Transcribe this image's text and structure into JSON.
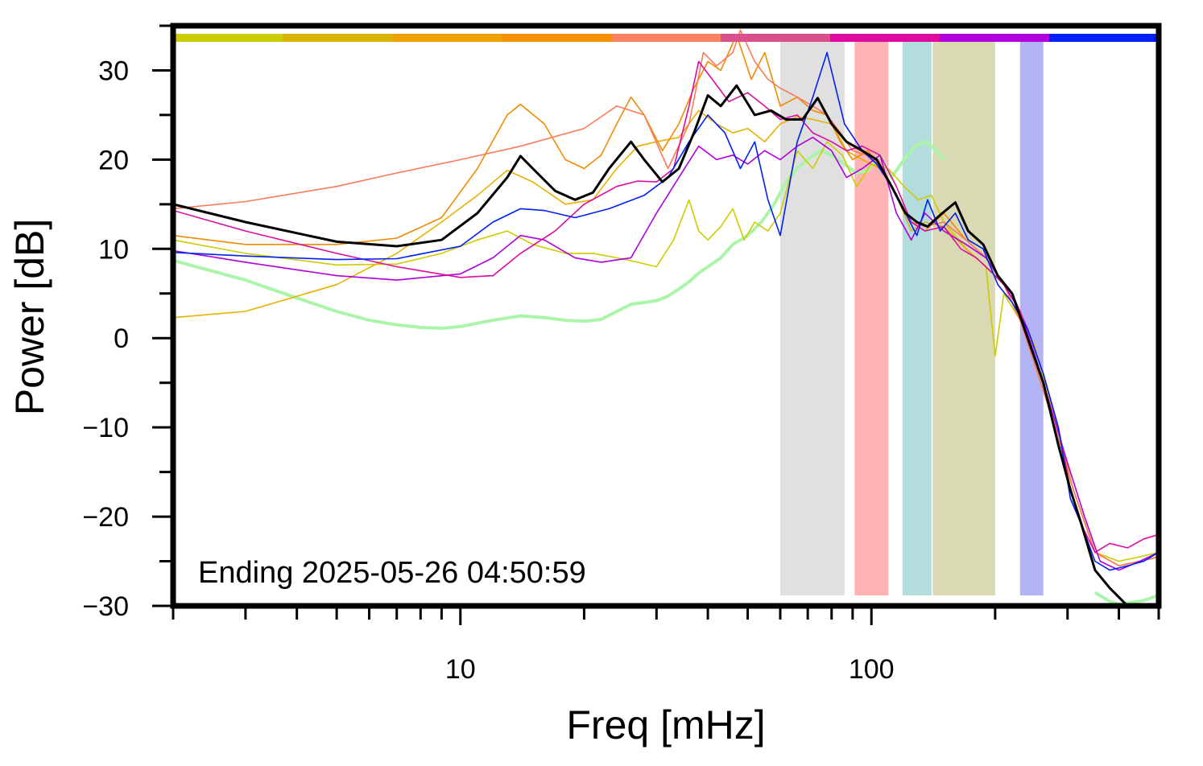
{
  "chart_data": {
    "type": "line",
    "xlabel": "Freq [mHz]",
    "ylabel": "Power [dB]",
    "x_scale": "log",
    "xlim": [
      2,
      500
    ],
    "ylim": [
      -30,
      35
    ],
    "x_tick_labels": [
      {
        "value": 10,
        "label": "10"
      },
      {
        "value": 100,
        "label": "100"
      }
    ],
    "x_minor_ticks": [
      2,
      3,
      4,
      5,
      6,
      7,
      8,
      9,
      20,
      30,
      40,
      50,
      60,
      70,
      80,
      90,
      200,
      300,
      400,
      500
    ],
    "y_ticks": [
      -30,
      -20,
      -10,
      0,
      10,
      20,
      30
    ],
    "y_minor_ticks": [
      -25,
      -15,
      -5,
      5,
      15,
      25,
      35
    ],
    "grid": false,
    "annotation": "Ending 2025-05-26 04:50:59",
    "shaded_bands": [
      {
        "x0": 60,
        "x1": 86,
        "color": "#e0e0e0"
      },
      {
        "x0": 91,
        "x1": 110,
        "color": "#ffb3b3"
      },
      {
        "x0": 119,
        "x1": 140,
        "color": "#b3dcdc"
      },
      {
        "x0": 141,
        "x1": 200,
        "color": "#d9d9b3"
      },
      {
        "x0": 230,
        "x1": 262,
        "color": "#b3b3f5"
      }
    ],
    "color_strip": [
      "#cccc00",
      "#d9b300",
      "#f0a000",
      "#f59000",
      "#fa8060",
      "#d9508a",
      "#dd0ba0",
      "#b000dd",
      "#0020f5"
    ],
    "series": [
      {
        "color": "#000000",
        "width": 3,
        "x": [
          2,
          3,
          5,
          7,
          9,
          11,
          13,
          14,
          15,
          17,
          19,
          21,
          23,
          26,
          28,
          31,
          34,
          37,
          40,
          43,
          47,
          52,
          57,
          62,
          68,
          74,
          80,
          87,
          95,
          103,
          112,
          121,
          129,
          137,
          147,
          160,
          172,
          187,
          203,
          220,
          240,
          262,
          285,
          305,
          325,
          350,
          380,
          420,
          460,
          500
        ],
        "y": [
          15,
          13,
          10.8,
          10.3,
          11,
          14,
          18,
          20.4,
          19,
          16.5,
          15.5,
          16.3,
          19,
          22,
          20,
          17.5,
          19,
          23,
          27.2,
          26,
          28.3,
          25,
          25.5,
          24.5,
          24.5,
          26.9,
          24,
          22,
          21,
          20,
          17,
          14,
          13,
          12.5,
          13.8,
          15.2,
          12,
          10.5,
          7,
          5,
          0,
          -5,
          -12,
          -17,
          -21,
          -26,
          -28,
          -30,
          -32,
          -33
        ]
      },
      {
        "color": "#0020f5",
        "width": 1.6,
        "x": [
          2,
          3,
          5,
          7,
          10,
          12,
          14,
          16,
          19,
          23,
          28,
          32,
          36,
          40,
          44,
          48,
          52,
          56,
          60,
          66,
          72,
          78,
          86,
          95,
          103,
          112,
          121,
          129,
          137,
          147,
          160,
          172,
          187,
          203,
          220,
          240,
          262,
          285,
          305,
          325,
          350,
          380,
          420,
          460,
          500
        ],
        "y": [
          9.6,
          9.2,
          8.8,
          8.9,
          10.3,
          13,
          14.5,
          14.3,
          13.5,
          14.5,
          16,
          18,
          22,
          25,
          23,
          19,
          22,
          15.5,
          11.5,
          22,
          27,
          32,
          24,
          21,
          19.5,
          17,
          14,
          11.5,
          15.5,
          12,
          14,
          11,
          10,
          6,
          4,
          1,
          -4,
          -10,
          -18,
          -21,
          -25,
          -26,
          -25.5,
          -25,
          -24
        ]
      },
      {
        "color": "#dd0ba0",
        "width": 1.6,
        "x": [
          2,
          3,
          5,
          7,
          10,
          12,
          14,
          17,
          20,
          24,
          27,
          30,
          33,
          36,
          38,
          41,
          45,
          50,
          55,
          60,
          66,
          72,
          80,
          87,
          95,
          105,
          115,
          125,
          135,
          150,
          165,
          180,
          200,
          220,
          240,
          262,
          285,
          305,
          325,
          350,
          380,
          420,
          460,
          500
        ],
        "y": [
          14.3,
          12,
          9.5,
          8,
          6.8,
          7,
          9.5,
          12,
          15,
          17,
          17.6,
          17.5,
          19,
          26,
          31,
          29,
          26.5,
          27.5,
          26,
          24.5,
          25,
          23,
          22,
          21,
          21.5,
          20.5,
          17,
          13,
          12,
          12.5,
          10,
          9,
          7,
          5,
          1,
          -4,
          -10,
          -17,
          -21,
          -24,
          -23,
          -23.5,
          -22.5,
          -22
        ]
      },
      {
        "color": "#b000dd",
        "width": 1.6,
        "x": [
          2,
          3,
          5,
          7,
          10,
          12,
          14,
          16,
          19,
          22,
          26,
          30,
          34,
          38,
          42,
          46,
          50,
          55,
          60,
          66,
          72,
          80,
          87,
          95,
          105,
          115,
          125,
          135,
          150,
          170,
          190,
          210,
          230,
          250,
          270,
          300,
          330,
          360,
          400,
          450,
          500
        ],
        "y": [
          9.8,
          8.5,
          7,
          6.5,
          7.2,
          9,
          11.5,
          11,
          9,
          8.5,
          9,
          14,
          18,
          21.5,
          20,
          20.5,
          19.5,
          21,
          20,
          21.5,
          22.5,
          21,
          18,
          19,
          20.5,
          14,
          11,
          14,
          12,
          10.5,
          9,
          6,
          3,
          -2,
          -7,
          -14,
          -20,
          -25,
          -26,
          -25,
          -24
        ]
      },
      {
        "color": "#cccc00",
        "width": 1.6,
        "x": [
          2,
          3,
          5,
          7,
          9,
          11,
          13,
          15,
          18,
          21,
          24,
          27,
          30,
          33,
          36,
          38,
          40,
          43,
          46,
          49,
          52,
          56,
          60,
          66,
          72,
          78,
          85,
          92,
          100,
          110,
          120,
          130,
          140,
          150,
          170,
          190,
          200,
          210,
          230,
          250,
          280,
          310,
          350,
          400,
          450,
          500
        ],
        "y": [
          11,
          9.5,
          8.2,
          8.3,
          9.5,
          11,
          12,
          10.5,
          9.5,
          9.5,
          9,
          8.5,
          8,
          11,
          15.5,
          12,
          11,
          12.5,
          14.5,
          11,
          13,
          12,
          14,
          21,
          19,
          22,
          20.5,
          17,
          19.5,
          19,
          17,
          15.5,
          16,
          13,
          10,
          8,
          -2,
          5,
          2,
          -3,
          -10,
          -17,
          -24,
          -25,
          -24.5,
          -24
        ]
      },
      {
        "color": "#e8b000",
        "width": 1.6,
        "x": [
          2,
          3,
          5,
          7,
          9,
          11,
          13,
          15,
          18,
          21,
          24,
          27,
          30,
          34,
          38,
          42,
          46,
          50,
          55,
          60,
          66,
          72,
          80,
          87,
          95,
          105,
          115,
          125,
          135,
          150,
          170,
          190,
          210,
          230,
          250,
          280,
          310,
          350,
          400,
          450,
          500
        ],
        "y": [
          2.3,
          3,
          6,
          9.5,
          13,
          16,
          18.8,
          17.5,
          15,
          15.5,
          19,
          21.5,
          22,
          22.5,
          25.5,
          24,
          23,
          23.5,
          22,
          24,
          24.8,
          24.5,
          24,
          21,
          20,
          19,
          16,
          12,
          13,
          12.5,
          10,
          8,
          6,
          3,
          -1,
          -9,
          -17,
          -24,
          -25.5,
          -25,
          -24.5
        ]
      },
      {
        "color": "#f08a00",
        "width": 1.6,
        "x": [
          2,
          3,
          5,
          7,
          9,
          11,
          13,
          14,
          16,
          18,
          20,
          22,
          24,
          26,
          28,
          31,
          34,
          37,
          40,
          43,
          47,
          51,
          55,
          60,
          66,
          72,
          78,
          84,
          90,
          98,
          106,
          115,
          125,
          135,
          150,
          170,
          190,
          210,
          230,
          250,
          280,
          310,
          350,
          400,
          450,
          500
        ],
        "y": [
          11.5,
          10.5,
          10.5,
          11.2,
          13.5,
          19,
          25,
          26.2,
          24,
          20,
          19,
          20.5,
          24,
          27,
          25,
          21,
          24,
          28,
          31,
          30,
          34,
          29,
          32,
          26,
          27,
          25.5,
          25,
          22,
          20,
          21,
          19,
          16,
          13,
          12,
          14,
          11,
          9,
          6,
          2,
          -3,
          -10,
          -17,
          -24,
          -25.5,
          -25,
          -24.5
        ]
      },
      {
        "color": "#fa7a5a",
        "width": 1.6,
        "x": [
          2,
          3,
          5,
          7,
          10,
          14,
          20,
          24,
          28,
          32,
          36,
          39,
          42,
          46,
          48,
          52,
          56,
          60,
          66,
          72,
          78,
          84,
          90,
          98,
          106,
          115,
          125,
          135,
          150,
          170,
          190,
          210,
          230,
          250,
          280,
          310,
          350,
          400,
          450,
          500
        ],
        "y": [
          14.5,
          15.3,
          17,
          18.5,
          20,
          21.5,
          23.5,
          26,
          25,
          19,
          24,
          32,
          30.5,
          32,
          34.5,
          31,
          29,
          28,
          27,
          26,
          25,
          23,
          21,
          20.5,
          19,
          16,
          13,
          12.5,
          13,
          11,
          9,
          6,
          2,
          -3,
          -10,
          -17,
          -24,
          -25.5,
          -25,
          -24.5
        ]
      },
      {
        "color": "#aaf5aa",
        "width": 4,
        "x": [
          2,
          3,
          4,
          5,
          6,
          7,
          8,
          9,
          10,
          12,
          14,
          16,
          18,
          20,
          22,
          24,
          26,
          28,
          30,
          32,
          34,
          36,
          38,
          40,
          43,
          46,
          50,
          54,
          58,
          62,
          66,
          70,
          75,
          80,
          86,
          92,
          98,
          105,
          112,
          120,
          128,
          136,
          144,
          150
        ],
        "y": [
          8.7,
          6.5,
          4.5,
          3,
          2,
          1.5,
          1.2,
          1.1,
          1.3,
          2,
          2.5,
          2.3,
          2,
          1.9,
          2.1,
          3,
          3.8,
          4,
          4.2,
          4.7,
          5.5,
          6.3,
          7.3,
          8,
          9,
          10.5,
          11.5,
          13,
          15,
          17.5,
          19,
          20,
          21,
          20.5,
          19.5,
          18.5,
          18.8,
          20.5,
          18,
          20,
          21.5,
          22,
          21,
          20
        ]
      },
      {
        "color": "#aaf5aa",
        "width": 4,
        "x": [
          350,
          380,
          400,
          430,
          460,
          500
        ],
        "y": [
          -28.5,
          -29.5,
          -29.8,
          -29.6,
          -29.4,
          -28.8
        ]
      }
    ]
  }
}
